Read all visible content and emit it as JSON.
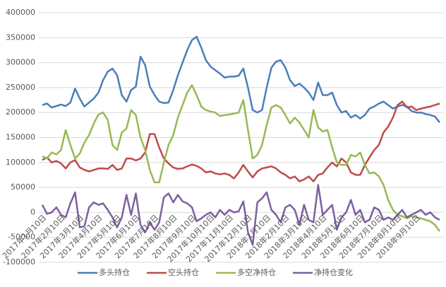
{
  "chart_data": {
    "type": "line",
    "categories": [
      "2017年1月10日",
      null,
      null,
      null,
      "2017年2月10日",
      null,
      null,
      null,
      "2017年3月10日",
      null,
      null,
      null,
      "2017年4月10日",
      null,
      null,
      null,
      "2017年5月10日",
      null,
      null,
      null,
      "2017年6月10日",
      null,
      null,
      null,
      "2017年7月10日",
      null,
      null,
      null,
      "2017年8月10日",
      null,
      null,
      null,
      "2017年9月10日",
      null,
      null,
      null,
      "2017年10月10日",
      null,
      null,
      null,
      "2017年11月10日",
      null,
      null,
      null,
      "2017年12月10日",
      null,
      null,
      null,
      "2018年1月10日",
      null,
      null,
      null,
      "2018年2月10日",
      null,
      null,
      null,
      "2018年3月10日",
      null,
      null,
      null,
      "2018年4月10日",
      null,
      null,
      null,
      "2018年5月10日",
      null,
      null,
      null,
      "2018年6月10日",
      null,
      null,
      null,
      "2018年7月10日",
      null,
      null,
      null,
      "2018年8月10日",
      null,
      null,
      null,
      "2018年9月10日",
      null,
      null,
      null,
      null,
      null
    ],
    "series": [
      {
        "name": "多头持仓",
        "color": "#4a7ebb",
        "values": [
          215000,
          218000,
          210000,
          213000,
          216000,
          213000,
          220000,
          248000,
          228000,
          212000,
          220000,
          228000,
          240000,
          265000,
          282000,
          288000,
          275000,
          235000,
          222000,
          245000,
          252000,
          312000,
          295000,
          252000,
          235000,
          222000,
          219000,
          220000,
          245000,
          275000,
          300000,
          325000,
          345000,
          352000,
          330000,
          305000,
          292000,
          285000,
          278000,
          270000,
          272000,
          272000,
          274000,
          288000,
          250000,
          205000,
          200000,
          205000,
          250000,
          290000,
          302000,
          305000,
          290000,
          265000,
          253000,
          258000,
          250000,
          240000,
          225000,
          260000,
          235000,
          235000,
          240000,
          215000,
          200000,
          203000,
          190000,
          195000,
          188000,
          195000,
          208000,
          212000,
          218000,
          222000,
          215000,
          208000,
          212000,
          215000,
          212000,
          203000,
          200000,
          200000,
          197000,
          195000,
          192000,
          180000
        ]
      },
      {
        "name": "空头持仓",
        "color": "#be4b48",
        "values": [
          105000,
          110000,
          100000,
          103000,
          98000,
          88000,
          100000,
          105000,
          90000,
          85000,
          82000,
          85000,
          88000,
          88000,
          87000,
          95000,
          85000,
          88000,
          108000,
          108000,
          104000,
          108000,
          120000,
          157000,
          157000,
          130000,
          108000,
          98000,
          90000,
          87000,
          88000,
          92000,
          96000,
          93000,
          88000,
          80000,
          82000,
          78000,
          76000,
          78000,
          75000,
          68000,
          80000,
          95000,
          82000,
          70000,
          82000,
          88000,
          90000,
          92000,
          88000,
          80000,
          75000,
          68000,
          72000,
          62000,
          66000,
          72000,
          62000,
          75000,
          78000,
          90000,
          100000,
          92000,
          108000,
          100000,
          80000,
          75000,
          75000,
          95000,
          110000,
          125000,
          135000,
          160000,
          172000,
          190000,
          215000,
          222000,
          210000,
          212000,
          205000,
          208000,
          210000,
          212000,
          215000,
          218000
        ]
      },
      {
        "name": "多空净持仓",
        "color": "#98b954",
        "values": [
          112000,
          108000,
          120000,
          116000,
          125000,
          165000,
          135000,
          108000,
          118000,
          140000,
          155000,
          178000,
          196000,
          200000,
          185000,
          135000,
          125000,
          160000,
          168000,
          205000,
          195000,
          150000,
          125000,
          85000,
          60000,
          60000,
          100000,
          135000,
          155000,
          190000,
          215000,
          240000,
          255000,
          235000,
          212000,
          205000,
          202000,
          200000,
          193000,
          195000,
          196000,
          198000,
          200000,
          225000,
          165000,
          108000,
          115000,
          135000,
          175000,
          210000,
          215000,
          210000,
          195000,
          178000,
          190000,
          180000,
          165000,
          150000,
          205000,
          170000,
          162000,
          165000,
          130000,
          100000,
          95000,
          95000,
          115000,
          112000,
          120000,
          95000,
          78000,
          80000,
          72000,
          55000,
          25000,
          5000,
          -5000,
          -8000,
          -12000,
          -8000,
          -10000,
          -12000,
          -15000,
          -18000,
          -25000,
          -38000
        ]
      },
      {
        "name": "净持仓变化",
        "color": "#7d60a0",
        "values": [
          15000,
          -3000,
          0,
          10000,
          -5000,
          -10000,
          18000,
          40000,
          -30000,
          -28000,
          10000,
          20000,
          15000,
          18000,
          5000,
          -10000,
          -30000,
          -10000,
          35000,
          -5000,
          38000,
          -25000,
          -40000,
          -20000,
          -35000,
          -20000,
          30000,
          38000,
          20000,
          35000,
          22000,
          18000,
          10000,
          -18000,
          -12000,
          -5000,
          0,
          -10000,
          5000,
          -5000,
          5000,
          0,
          2000,
          22000,
          -40000,
          -65000,
          20000,
          28000,
          40000,
          5000,
          -5000,
          -20000,
          10000,
          15000,
          5000,
          -25000,
          15000,
          -15000,
          -20000,
          55000,
          -5000,
          5000,
          15000,
          -35000,
          -10000,
          0,
          25000,
          -5000,
          5000,
          -20000,
          -15000,
          10000,
          5000,
          -15000,
          -10000,
          -15000,
          -5000,
          5000,
          -10000,
          -5000,
          0,
          5000,
          -5000,
          0,
          -10000,
          -15000
        ]
      }
    ],
    "ylim": [
      -100000,
      400000
    ],
    "yticks": [
      -100000,
      -50000,
      0,
      50000,
      100000,
      150000,
      200000,
      250000,
      300000,
      350000,
      400000
    ],
    "grid": true,
    "legend": "bottom"
  }
}
